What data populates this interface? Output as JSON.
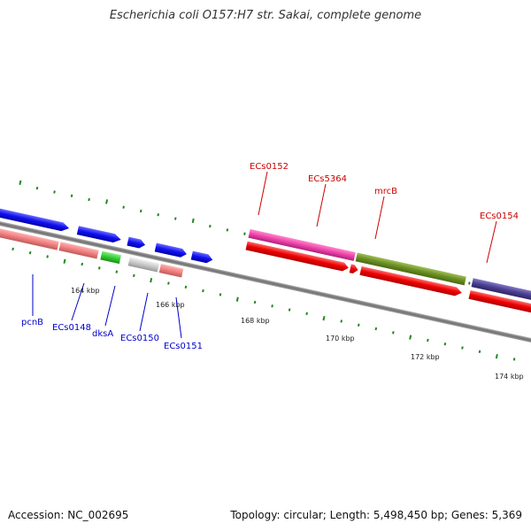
{
  "title": "Escherichia coli O157:H7 str. Sakai, complete genome",
  "footer": {
    "accession": "Accession: NC_002695",
    "stats": "Topology: circular; Length: 5,498,450 bp; Genes: 5,369"
  },
  "scale_labels": [
    "164 kbp",
    "166 kbp",
    "168 kbp",
    "170 kbp",
    "172 kbp",
    "174 kbp"
  ],
  "gene_labels_top": [
    "ECs0152",
    "ECs5364",
    "mrcB",
    "ECs0154"
  ],
  "gene_labels_bottom": [
    "pcnB",
    "ECs0148",
    "dksA",
    "ECs0150",
    "ECs0151"
  ],
  "colors": {
    "backbone": "#7a7a7a",
    "tick": "#228822",
    "label_red": "#cc0000",
    "label_blue": "#0000cc",
    "cds_red": "#ee0000",
    "cds_blue": "#1010ee",
    "pink": "#ee44aa",
    "olive": "#6b8e23",
    "slate": "#4a3f8f",
    "salmon": "#f08080",
    "green": "#33cc33",
    "grey": "#c8c8c8"
  }
}
